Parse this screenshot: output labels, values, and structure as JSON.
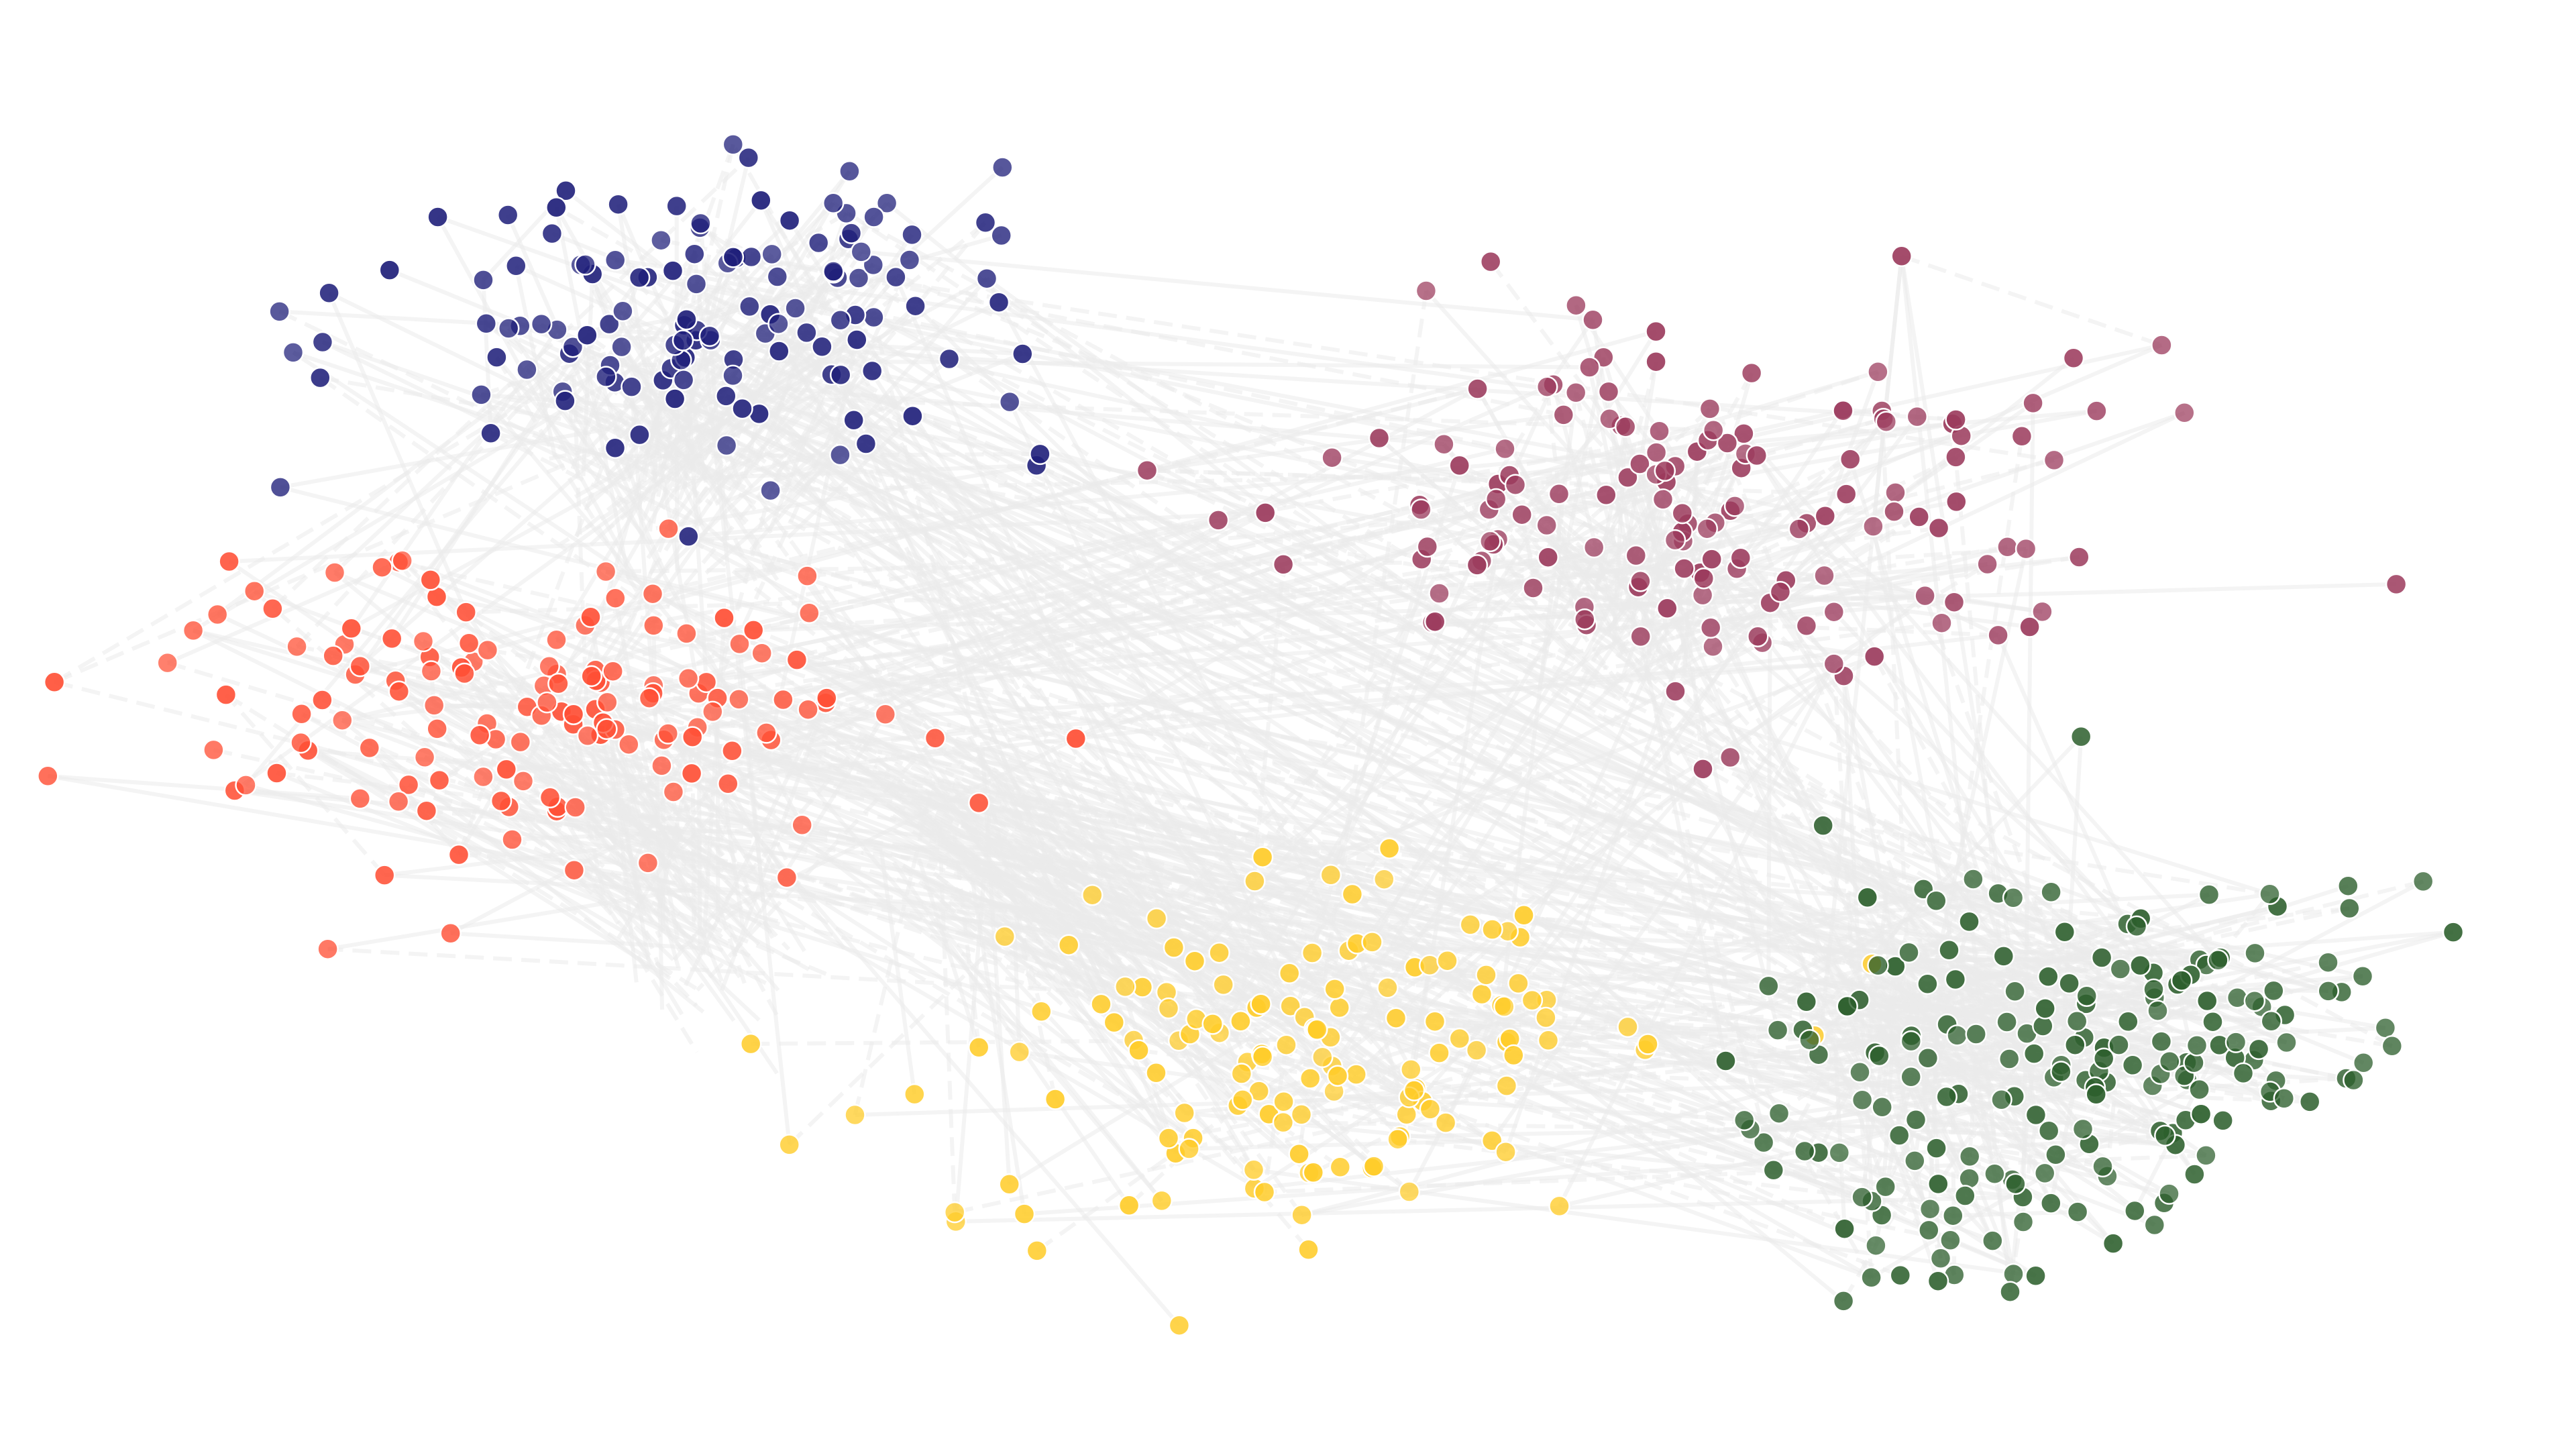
{
  "graph": {
    "type": "network",
    "layout": "force-directed",
    "background_color": "#ffffff",
    "edge_color": "#ebebeb",
    "node_stroke_color": "#ffffff",
    "clusters": [
      {
        "name": "",
        "color": "#1f1f7a",
        "approx_nodes": 130
      },
      {
        "name": "",
        "color": "#9b3a5c",
        "approx_nodes": 150
      },
      {
        "name": "",
        "color": "#ff4f35",
        "approx_nodes": 140
      },
      {
        "name": "",
        "color": "#ffcc29",
        "approx_nodes": 140
      },
      {
        "name": "",
        "color": "#2d5f2d",
        "approx_nodes": 200
      }
    ]
  }
}
